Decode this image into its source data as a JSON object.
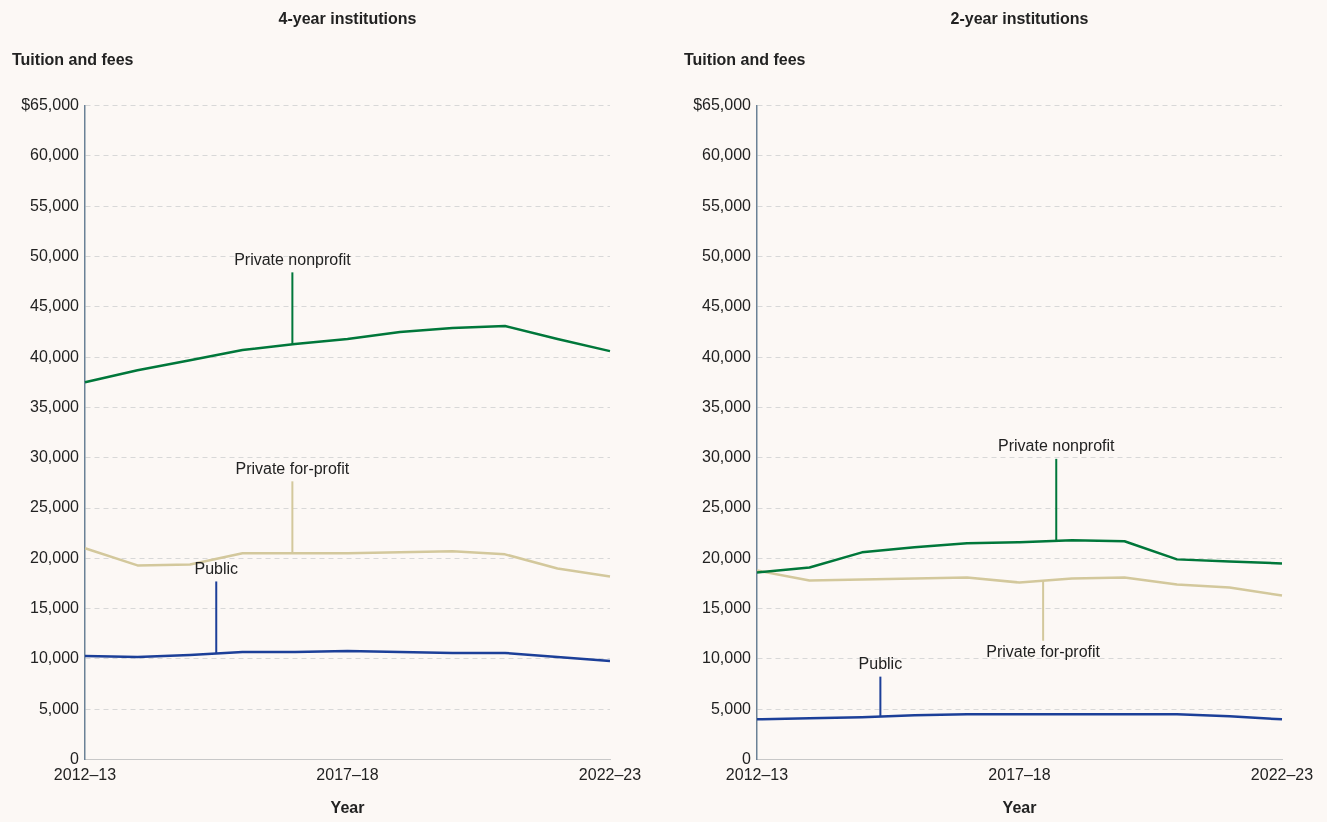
{
  "chart_data": [
    {
      "type": "line",
      "title": "4-year institutions",
      "ylabel": "Tuition and fees",
      "xlabel": "Year",
      "categories": [
        "2012–13",
        null,
        null,
        null,
        null,
        "2017–18",
        null,
        null,
        null,
        null,
        "2022–23"
      ],
      "ylim": [
        0,
        65000
      ],
      "yticks": [
        {
          "value": 0,
          "label": "0"
        },
        {
          "value": 5000,
          "label": "5,000"
        },
        {
          "value": 10000,
          "label": "10,000"
        },
        {
          "value": 15000,
          "label": "15,000"
        },
        {
          "value": 20000,
          "label": "20,000"
        },
        {
          "value": 25000,
          "label": "25,000"
        },
        {
          "value": 30000,
          "label": "30,000"
        },
        {
          "value": 35000,
          "label": "35,000"
        },
        {
          "value": 40000,
          "label": "40,000"
        },
        {
          "value": 45000,
          "label": "45,000"
        },
        {
          "value": 50000,
          "label": "50,000"
        },
        {
          "value": 55000,
          "label": "55,000"
        },
        {
          "value": 60000,
          "label": "60,000"
        },
        {
          "value": 65000,
          "label": "$65,000"
        }
      ],
      "grid": "y",
      "legend": false,
      "marker": "none",
      "series": [
        {
          "name": "Private nonprofit",
          "color": "#00773a",
          "values": [
            37500,
            38700,
            39700,
            40700,
            41300,
            41800,
            42500,
            42900,
            43100,
            41800,
            40600
          ]
        },
        {
          "name": "Private for-profit",
          "color": "#d3c89c",
          "values": [
            21000,
            19300,
            19400,
            20500,
            20500,
            20500,
            20600,
            20700,
            20400,
            19000,
            18200
          ]
        },
        {
          "name": "Public",
          "color": "#1c3f98",
          "values": [
            10300,
            10200,
            10400,
            10700,
            10700,
            10800,
            10700,
            10600,
            10600,
            10200,
            9800
          ]
        }
      ]
    },
    {
      "type": "line",
      "title": "2-year institutions",
      "ylabel": "Tuition and fees",
      "xlabel": "Year",
      "categories": [
        "2012–13",
        null,
        null,
        null,
        null,
        "2017–18",
        null,
        null,
        null,
        null,
        "2022–23"
      ],
      "ylim": [
        0,
        65000
      ],
      "yticks": [
        {
          "value": 0,
          "label": "0"
        },
        {
          "value": 5000,
          "label": "5,000"
        },
        {
          "value": 10000,
          "label": "10,000"
        },
        {
          "value": 15000,
          "label": "15,000"
        },
        {
          "value": 20000,
          "label": "20,000"
        },
        {
          "value": 25000,
          "label": "25,000"
        },
        {
          "value": 30000,
          "label": "30,000"
        },
        {
          "value": 35000,
          "label": "35,000"
        },
        {
          "value": 40000,
          "label": "40,000"
        },
        {
          "value": 45000,
          "label": "45,000"
        },
        {
          "value": 50000,
          "label": "50,000"
        },
        {
          "value": 55000,
          "label": "55,000"
        },
        {
          "value": 60000,
          "label": "60,000"
        },
        {
          "value": 65000,
          "label": "$65,000"
        }
      ],
      "grid": "y",
      "legend": false,
      "marker": "none",
      "series": [
        {
          "name": "Private nonprofit",
          "color": "#00773a",
          "values": [
            18600,
            19100,
            20600,
            21100,
            21500,
            21600,
            21800,
            21700,
            19900,
            19700,
            19500
          ]
        },
        {
          "name": "Private for-profit",
          "color": "#d3c89c",
          "values": [
            18800,
            17800,
            17900,
            18000,
            18100,
            17600,
            18000,
            18100,
            17400,
            17100,
            16300
          ]
        },
        {
          "name": "Public",
          "color": "#1c3f98",
          "values": [
            4000,
            4100,
            4200,
            4400,
            4500,
            4500,
            4500,
            4500,
            4500,
            4300,
            4000
          ]
        }
      ]
    }
  ]
}
